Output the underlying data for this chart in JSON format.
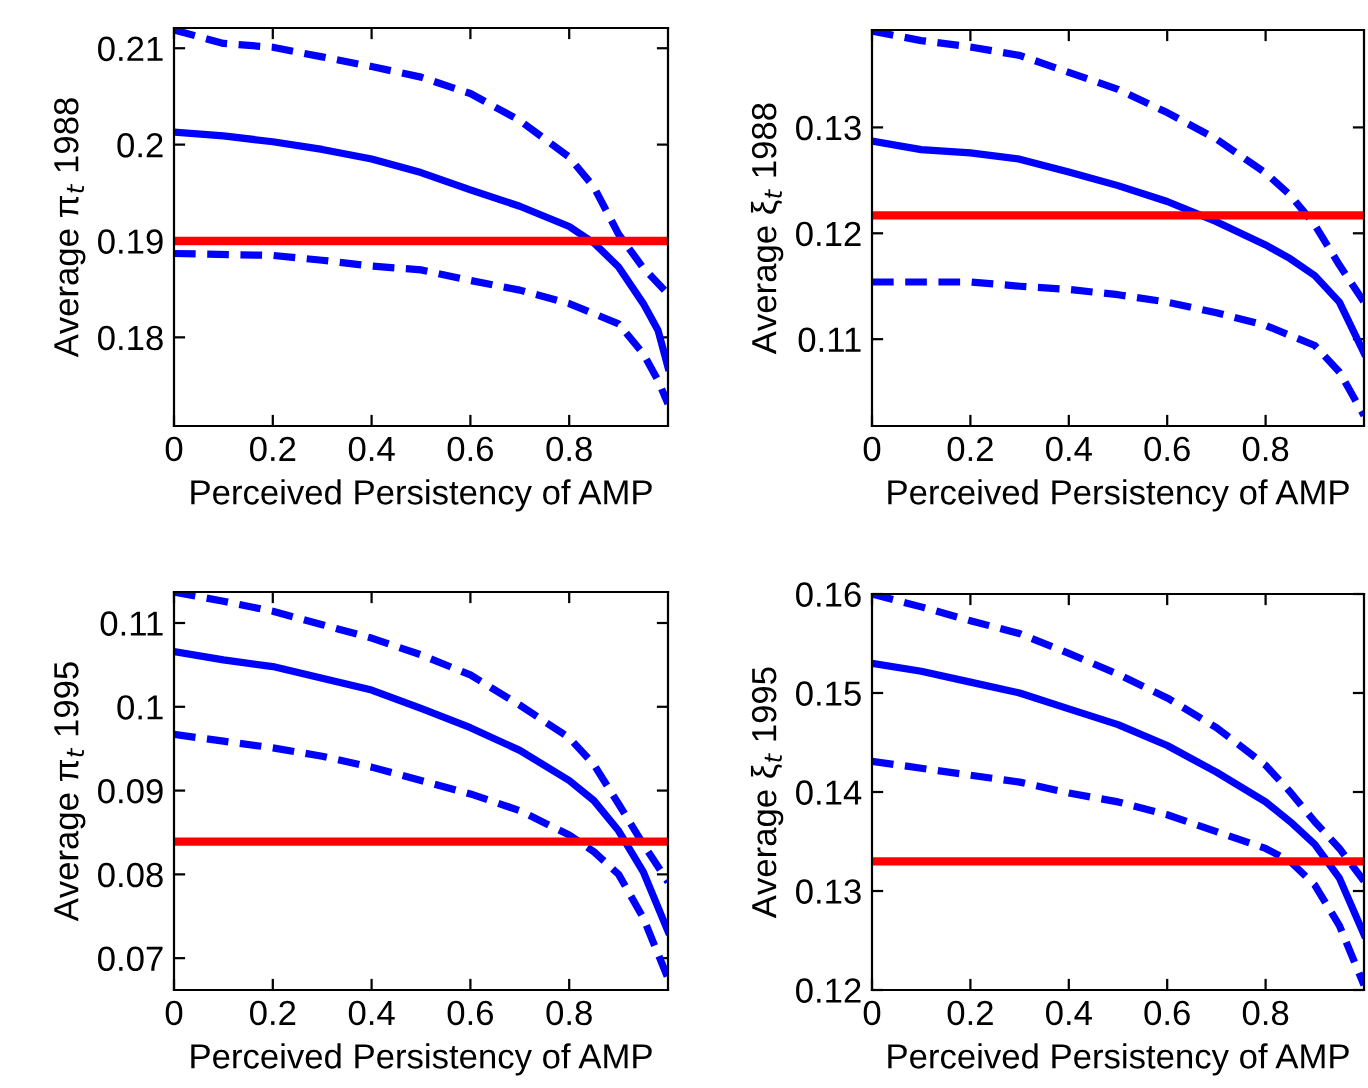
{
  "chart_data": [
    {
      "type": "line",
      "xlabel": "Perceived Persistency of AMP",
      "ylabel": "Average π$_{t}$ 1988",
      "xlim": [
        0,
        1
      ],
      "xticks": [
        0,
        0.2,
        0.4,
        0.6,
        0.8
      ],
      "ylim": [
        0.1708,
        0.2121
      ],
      "yticks": [
        0.18,
        0.19,
        0.2,
        0.21
      ],
      "grid": false,
      "ref_lines": [
        {
          "axis": "y",
          "value": 0.19,
          "color": "#ff0000"
        }
      ],
      "series": [
        {
          "color": "#0000ff",
          "line_style": "dashed",
          "x": [
            0,
            0.1,
            0.2,
            0.3,
            0.4,
            0.5,
            0.6,
            0.7,
            0.8,
            0.85,
            0.9,
            0.95,
            1.0
          ],
          "values": [
            0.2119,
            0.2105,
            0.2101,
            0.2091,
            0.2081,
            0.207,
            0.2053,
            0.2025,
            0.1987,
            0.1956,
            0.1907,
            0.1872,
            0.1845
          ]
        },
        {
          "color": "#0000ff",
          "line_style": "solid",
          "x": [
            0,
            0.1,
            0.2,
            0.3,
            0.4,
            0.5,
            0.6,
            0.7,
            0.8,
            0.85,
            0.9,
            0.95,
            0.98,
            1.0
          ],
          "values": [
            0.2013,
            0.2009,
            0.2003,
            0.1995,
            0.1985,
            0.1971,
            0.1953,
            0.1936,
            0.1915,
            0.1898,
            0.1873,
            0.1835,
            0.1807,
            0.1769
          ]
        },
        {
          "color": "#0000ff",
          "line_style": "dashed",
          "x": [
            0,
            0.2,
            0.3,
            0.4,
            0.5,
            0.6,
            0.7,
            0.8,
            0.9,
            0.95,
            0.98,
            1.0
          ],
          "values": [
            0.1887,
            0.1885,
            0.188,
            0.1874,
            0.187,
            0.1859,
            0.1849,
            0.1835,
            0.1814,
            0.1783,
            0.1755,
            0.1731
          ]
        }
      ]
    },
    {
      "type": "line",
      "xlabel": "Perceived Persistency of AMP",
      "ylabel": "Average ξ$_{t}$ 1988",
      "xlim": [
        0,
        1
      ],
      "xticks": [
        0,
        0.2,
        0.4,
        0.6,
        0.8
      ],
      "ylim": [
        0.1018,
        0.1392
      ],
      "yticks": [
        0.11,
        0.12,
        0.13
      ],
      "grid": false,
      "ref_lines": [
        {
          "axis": "y",
          "value": 0.1217,
          "color": "#ff0000"
        }
      ],
      "series": [
        {
          "color": "#0000ff",
          "line_style": "dashed",
          "x": [
            0,
            0.1,
            0.2,
            0.3,
            0.4,
            0.5,
            0.6,
            0.7,
            0.8,
            0.85,
            0.9,
            0.95,
            1.0
          ],
          "values": [
            0.1391,
            0.1382,
            0.1376,
            0.1368,
            0.1352,
            0.1336,
            0.1314,
            0.1289,
            0.1257,
            0.1236,
            0.1208,
            0.117,
            0.1135
          ]
        },
        {
          "color": "#0000ff",
          "line_style": "solid",
          "x": [
            0,
            0.1,
            0.2,
            0.3,
            0.4,
            0.5,
            0.6,
            0.7,
            0.8,
            0.85,
            0.9,
            0.95,
            1.0
          ],
          "values": [
            0.1287,
            0.1279,
            0.1276,
            0.127,
            0.1258,
            0.1245,
            0.123,
            0.1211,
            0.1189,
            0.1176,
            0.116,
            0.1135,
            0.1087
          ]
        },
        {
          "color": "#0000ff",
          "line_style": "dashed",
          "x": [
            0,
            0.2,
            0.3,
            0.4,
            0.5,
            0.6,
            0.7,
            0.8,
            0.9,
            0.95,
            1.0
          ],
          "values": [
            0.1154,
            0.1154,
            0.115,
            0.1147,
            0.1142,
            0.1135,
            0.1125,
            0.1113,
            0.1094,
            0.1069,
            0.1028
          ]
        }
      ]
    },
    {
      "type": "line",
      "xlabel": "Perceived Persistency of AMP",
      "ylabel": "Average π$_{t}$ 1995",
      "xlim": [
        0,
        1
      ],
      "xticks": [
        0,
        0.2,
        0.4,
        0.6,
        0.8
      ],
      "ylim": [
        0.0662,
        0.1137
      ],
      "yticks": [
        0.07,
        0.08,
        0.09,
        0.1,
        0.11
      ],
      "grid": false,
      "ref_lines": [
        {
          "axis": "y",
          "value": 0.0839,
          "color": "#ff0000"
        }
      ],
      "series": [
        {
          "color": "#0000ff",
          "line_style": "dashed",
          "x": [
            0,
            0.1,
            0.2,
            0.3,
            0.4,
            0.5,
            0.6,
            0.7,
            0.8,
            0.85,
            0.9,
            0.95,
            1.0
          ],
          "values": [
            0.1137,
            0.1126,
            0.1114,
            0.1098,
            0.1082,
            0.1062,
            0.1038,
            0.1002,
            0.0963,
            0.0931,
            0.0884,
            0.0836,
            0.0791
          ]
        },
        {
          "color": "#0000ff",
          "line_style": "solid",
          "x": [
            0,
            0.1,
            0.2,
            0.3,
            0.4,
            0.5,
            0.6,
            0.7,
            0.8,
            0.85,
            0.9,
            0.95,
            1.0
          ],
          "values": [
            0.1066,
            0.1056,
            0.1048,
            0.1034,
            0.102,
            0.0998,
            0.0975,
            0.0948,
            0.0912,
            0.0888,
            0.0852,
            0.0803,
            0.0732
          ]
        },
        {
          "color": "#0000ff",
          "line_style": "dashed",
          "x": [
            0,
            0.1,
            0.2,
            0.3,
            0.4,
            0.5,
            0.6,
            0.7,
            0.8,
            0.85,
            0.9,
            0.95,
            1.0
          ],
          "values": [
            0.0967,
            0.0959,
            0.0951,
            0.0941,
            0.0928,
            0.0912,
            0.0896,
            0.0876,
            0.0847,
            0.0827,
            0.08,
            0.0748,
            0.0676
          ]
        }
      ]
    },
    {
      "type": "line",
      "xlabel": "Perceived Persistency of AMP",
      "ylabel": "Average ξ$_{t}$ 1995",
      "xlim": [
        0,
        1
      ],
      "xticks": [
        0,
        0.2,
        0.4,
        0.6,
        0.8
      ],
      "ylim": [
        0.12,
        0.16
      ],
      "yticks": [
        0.12,
        0.13,
        0.14,
        0.15,
        0.16
      ],
      "grid": false,
      "ref_lines": [
        {
          "axis": "y",
          "value": 0.133,
          "color": "#ff0000"
        }
      ],
      "series": [
        {
          "color": "#0000ff",
          "line_style": "dashed",
          "x": [
            0,
            0.1,
            0.2,
            0.3,
            0.4,
            0.5,
            0.6,
            0.7,
            0.8,
            0.85,
            0.9,
            0.95,
            1.0
          ],
          "values": [
            0.16,
            0.1587,
            0.1573,
            0.156,
            0.154,
            0.1519,
            0.1495,
            0.1465,
            0.1427,
            0.14,
            0.137,
            0.1343,
            0.131
          ]
        },
        {
          "color": "#0000ff",
          "line_style": "solid",
          "x": [
            0,
            0.1,
            0.2,
            0.3,
            0.4,
            0.5,
            0.6,
            0.7,
            0.8,
            0.85,
            0.9,
            0.95,
            1.0
          ],
          "values": [
            0.153,
            0.1522,
            0.1511,
            0.15,
            0.1484,
            0.1468,
            0.1447,
            0.142,
            0.139,
            0.137,
            0.1347,
            0.1313,
            0.1256
          ]
        },
        {
          "color": "#0000ff",
          "line_style": "dashed",
          "x": [
            0,
            0.1,
            0.2,
            0.3,
            0.4,
            0.5,
            0.6,
            0.7,
            0.8,
            0.85,
            0.9,
            0.95,
            1.0
          ],
          "values": [
            0.1431,
            0.1424,
            0.1417,
            0.141,
            0.1399,
            0.139,
            0.1377,
            0.136,
            0.1343,
            0.133,
            0.1306,
            0.1265,
            0.1205
          ]
        }
      ]
    }
  ]
}
